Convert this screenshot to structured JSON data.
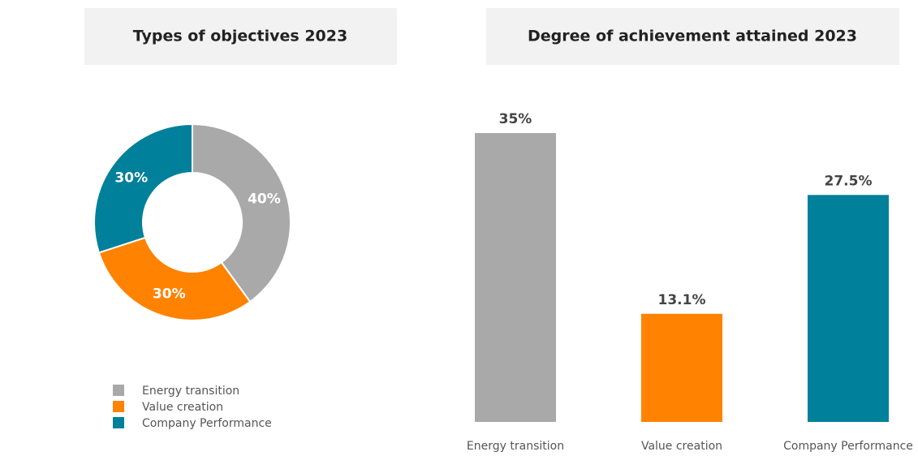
{
  "chart_data": [
    {
      "type": "donut",
      "title": "Types of objectives 2023",
      "categories": [
        "Energy transition",
        "Value creation",
        "Company Performance"
      ],
      "values": [
        40,
        30,
        30
      ],
      "value_labels": [
        "40%",
        "30%",
        "30%"
      ],
      "colors": [
        "#a9a9a9",
        "#ff8200",
        "#00809a"
      ],
      "legend": "bottom"
    },
    {
      "type": "bar",
      "title": "Degree of achievement attained 2023",
      "categories": [
        "Energy transition",
        "Value creation",
        "Company Performance"
      ],
      "values": [
        35,
        13.1,
        27.5
      ],
      "value_labels": [
        "35%",
        "13.1%",
        "27.5%"
      ],
      "colors": [
        "#a9a9a9",
        "#ff8200",
        "#00809a"
      ]
    }
  ]
}
